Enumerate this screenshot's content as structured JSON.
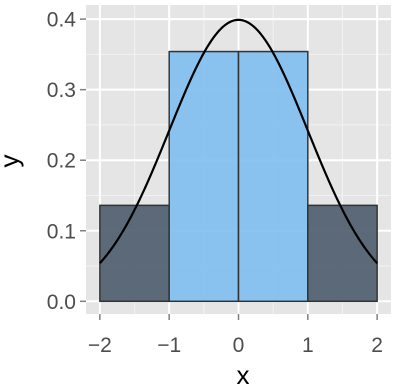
{
  "chart_data": {
    "type": "bar",
    "title": "",
    "xlabel": "x",
    "ylabel": "y",
    "xlim": [
      -2.2,
      2.2
    ],
    "ylim": [
      -0.018,
      0.42
    ],
    "xticks": [
      -2,
      -1,
      0,
      1,
      2
    ],
    "xtick_labels": [
      "−2",
      "−1",
      "0",
      "1",
      "2"
    ],
    "yticks": [
      0.0,
      0.1,
      0.2,
      0.3,
      0.4
    ],
    "ytick_labels": [
      "0.0",
      "0.1",
      "0.2",
      "0.3",
      "0.4"
    ],
    "grid": true,
    "bars": [
      {
        "x0": -2,
        "x1": -1,
        "y": 0.136,
        "color": "#4d5b6d"
      },
      {
        "x0": -1,
        "x1": 0,
        "y": 0.354,
        "color": "#7fbef0"
      },
      {
        "x0": 0,
        "x1": 1,
        "y": 0.354,
        "color": "#7fbef0"
      },
      {
        "x0": 1,
        "x1": 2,
        "y": 0.136,
        "color": "#4d5b6d"
      }
    ],
    "curve": {
      "name": "standard normal density",
      "mean": 0,
      "sd": 1,
      "x_range": [
        -2,
        2
      ],
      "color": "#000000"
    },
    "colors": {
      "panel_background": "#e5e5e5",
      "grid_major": "#ffffff",
      "axis_text": "#4d4d4d",
      "bar_outline": "#333333"
    }
  }
}
